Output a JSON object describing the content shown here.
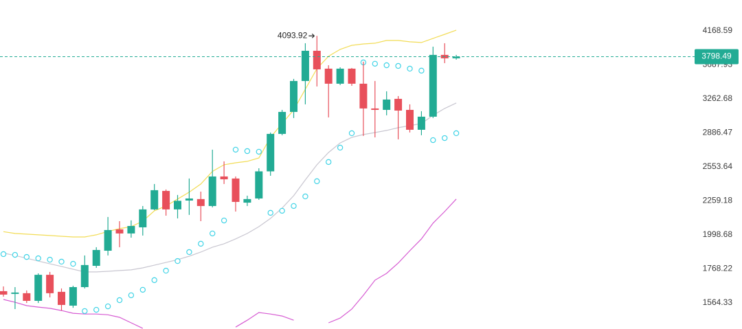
{
  "chart_data": {
    "type": "candlestick",
    "log_scale": true,
    "grid": false,
    "ylim": [
      1424,
      4659
    ],
    "yticks": [
      4168.59,
      3687.93,
      3262.68,
      2886.47,
      2553.64,
      2259.18,
      1998.68,
      1768.22,
      1564.33
    ],
    "up_color": "#22ab94",
    "down_color": "#e8505b",
    "candles": {
      "open": [
        1632,
        1616,
        1620,
        1576,
        1731,
        1628,
        1549,
        1656,
        1788,
        1888,
        2039,
        2009,
        2054,
        2191,
        2342,
        2191,
        2262,
        2274,
        2218,
        2467,
        2449,
        2245,
        2279,
        2513,
        2876,
        3113,
        3480,
        3880,
        3638,
        3446,
        3638,
        3446,
        3152,
        3136,
        3263,
        3136,
        2919,
        3060,
        3823,
        3776
      ],
      "high": [
        1660,
        1656,
        1636,
        1740,
        1749,
        1648,
        1664,
        1856,
        1912,
        2132,
        2100,
        2106,
        2218,
        2401,
        2354,
        2308,
        2449,
        2336,
        2717,
        2605,
        2467,
        2302,
        2541,
        2890,
        3136,
        3506,
        3987,
        4093.92,
        3683,
        3656,
        3647,
        3730,
        3480,
        3353,
        3296,
        3199,
        3121,
        3938,
        3987,
        3823
      ],
      "low": [
        1600,
        1530,
        1564,
        1564,
        1596,
        1522,
        1537,
        1648,
        1775,
        1856,
        1912,
        1979,
        1994,
        2185,
        2142,
        2121,
        2148,
        2100,
        2207,
        2401,
        2174,
        2218,
        2268,
        2473,
        2862,
        3045,
        3199,
        3412,
        3052,
        3429,
        3420,
        2855,
        2840,
        3075,
        2820,
        2891,
        2862,
        3045,
        3711,
        3758
      ],
      "close": [
        1612,
        1624,
        1576,
        1731,
        1620,
        1553,
        1656,
        1793,
        1893,
        2034,
        2009,
        2064,
        2191,
        2348,
        2191,
        2260,
        2279,
        2218,
        2467,
        2442,
        2251,
        2274,
        2513,
        2876,
        3113,
        3480,
        3880,
        3629,
        3446,
        3638,
        3446,
        3152,
        3136,
        3255,
        3128,
        2919,
        3060,
        3823,
        3776,
        3798.49
      ]
    },
    "lines": [
      {
        "color": "#f2dc55",
        "values": [
          2022,
          2009,
          2004,
          1999,
          1994,
          1989,
          1984,
          1984,
          1999,
          2024,
          2044,
          2059,
          2100,
          2180,
          2218,
          2274,
          2331,
          2401,
          2513,
          2573,
          2592,
          2605,
          2637,
          2840,
          2985,
          3136,
          3378,
          3638,
          3804,
          3900,
          3957,
          3977,
          3987,
          4027,
          4027,
          4007,
          3997,
          4057,
          4117,
          4179
        ]
      },
      {
        "color": "#c8c6d0",
        "values": [
          1872,
          1856,
          1837,
          1819,
          1801,
          1784,
          1766,
          1749,
          1749,
          1753,
          1758,
          1762,
          1775,
          1792,
          1810,
          1828,
          1851,
          1879,
          1912,
          1936,
          1970,
          2009,
          2059,
          2121,
          2202,
          2302,
          2437,
          2573,
          2690,
          2784,
          2840,
          2869,
          2890,
          2912,
          2941,
          2963,
          2985,
          3075,
          3152,
          3215
        ]
      },
      {
        "color": "#d65ad2",
        "values": [
          1584,
          1568,
          1549,
          1541,
          1534,
          1522,
          1507,
          1503,
          1503,
          1499,
          1485,
          1456,
          1427,
          null,
          null,
          null,
          null,
          null,
          null,
          null,
          1434,
          1470,
          1511,
          1503,
          1492,
          1470,
          null,
          null,
          1456,
          1481,
          1530,
          1608,
          1698,
          1740,
          1806,
          1888,
          1970,
          2085,
          2174,
          2274
        ]
      }
    ],
    "sar": {
      "color": "#3fd3e6",
      "values": [
        1865,
        1860,
        1846,
        1837,
        1828,
        1815,
        1801,
        1519,
        1526,
        1545,
        1580,
        1608,
        1640,
        1698,
        1757,
        1819,
        1879,
        1936,
        2009,
        2105,
        2717,
        2703,
        2697,
        2164,
        2180,
        2218,
        2296,
        2425,
        2599,
        2737,
        2883,
        3721,
        3703,
        3683,
        3674,
        3638,
        3612,
        2812,
        2833,
        2883
      ]
    },
    "price_line_color": "#22ab94"
  }
}
